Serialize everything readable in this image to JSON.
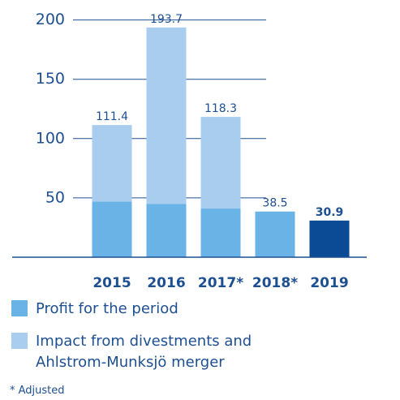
{
  "chart_data": {
    "type": "stacked_bar",
    "categories": [
      "2015",
      "2016",
      "2017*",
      "2018*",
      "2019"
    ],
    "series": [
      {
        "name": "Profit for the period",
        "color": "#69b3e7",
        "colors": [
          "#69b3e7",
          "#69b3e7",
          "#69b3e7",
          "#69b3e7",
          "#0b4a94"
        ],
        "values": [
          47,
          45,
          41,
          38.5,
          30.9
        ]
      },
      {
        "name": "Impact from divestments and Ahlstrom-Munksjö merger",
        "color": "#a8cdef",
        "values": [
          64.4,
          148.7,
          77.3,
          0,
          0
        ]
      }
    ],
    "totals": [
      111.4,
      193.7,
      118.3,
      38.5,
      30.9
    ],
    "ylim": [
      0,
      210
    ],
    "yticks": [
      50,
      100,
      150,
      200
    ],
    "grid": true,
    "footnote": "* Adjusted"
  }
}
